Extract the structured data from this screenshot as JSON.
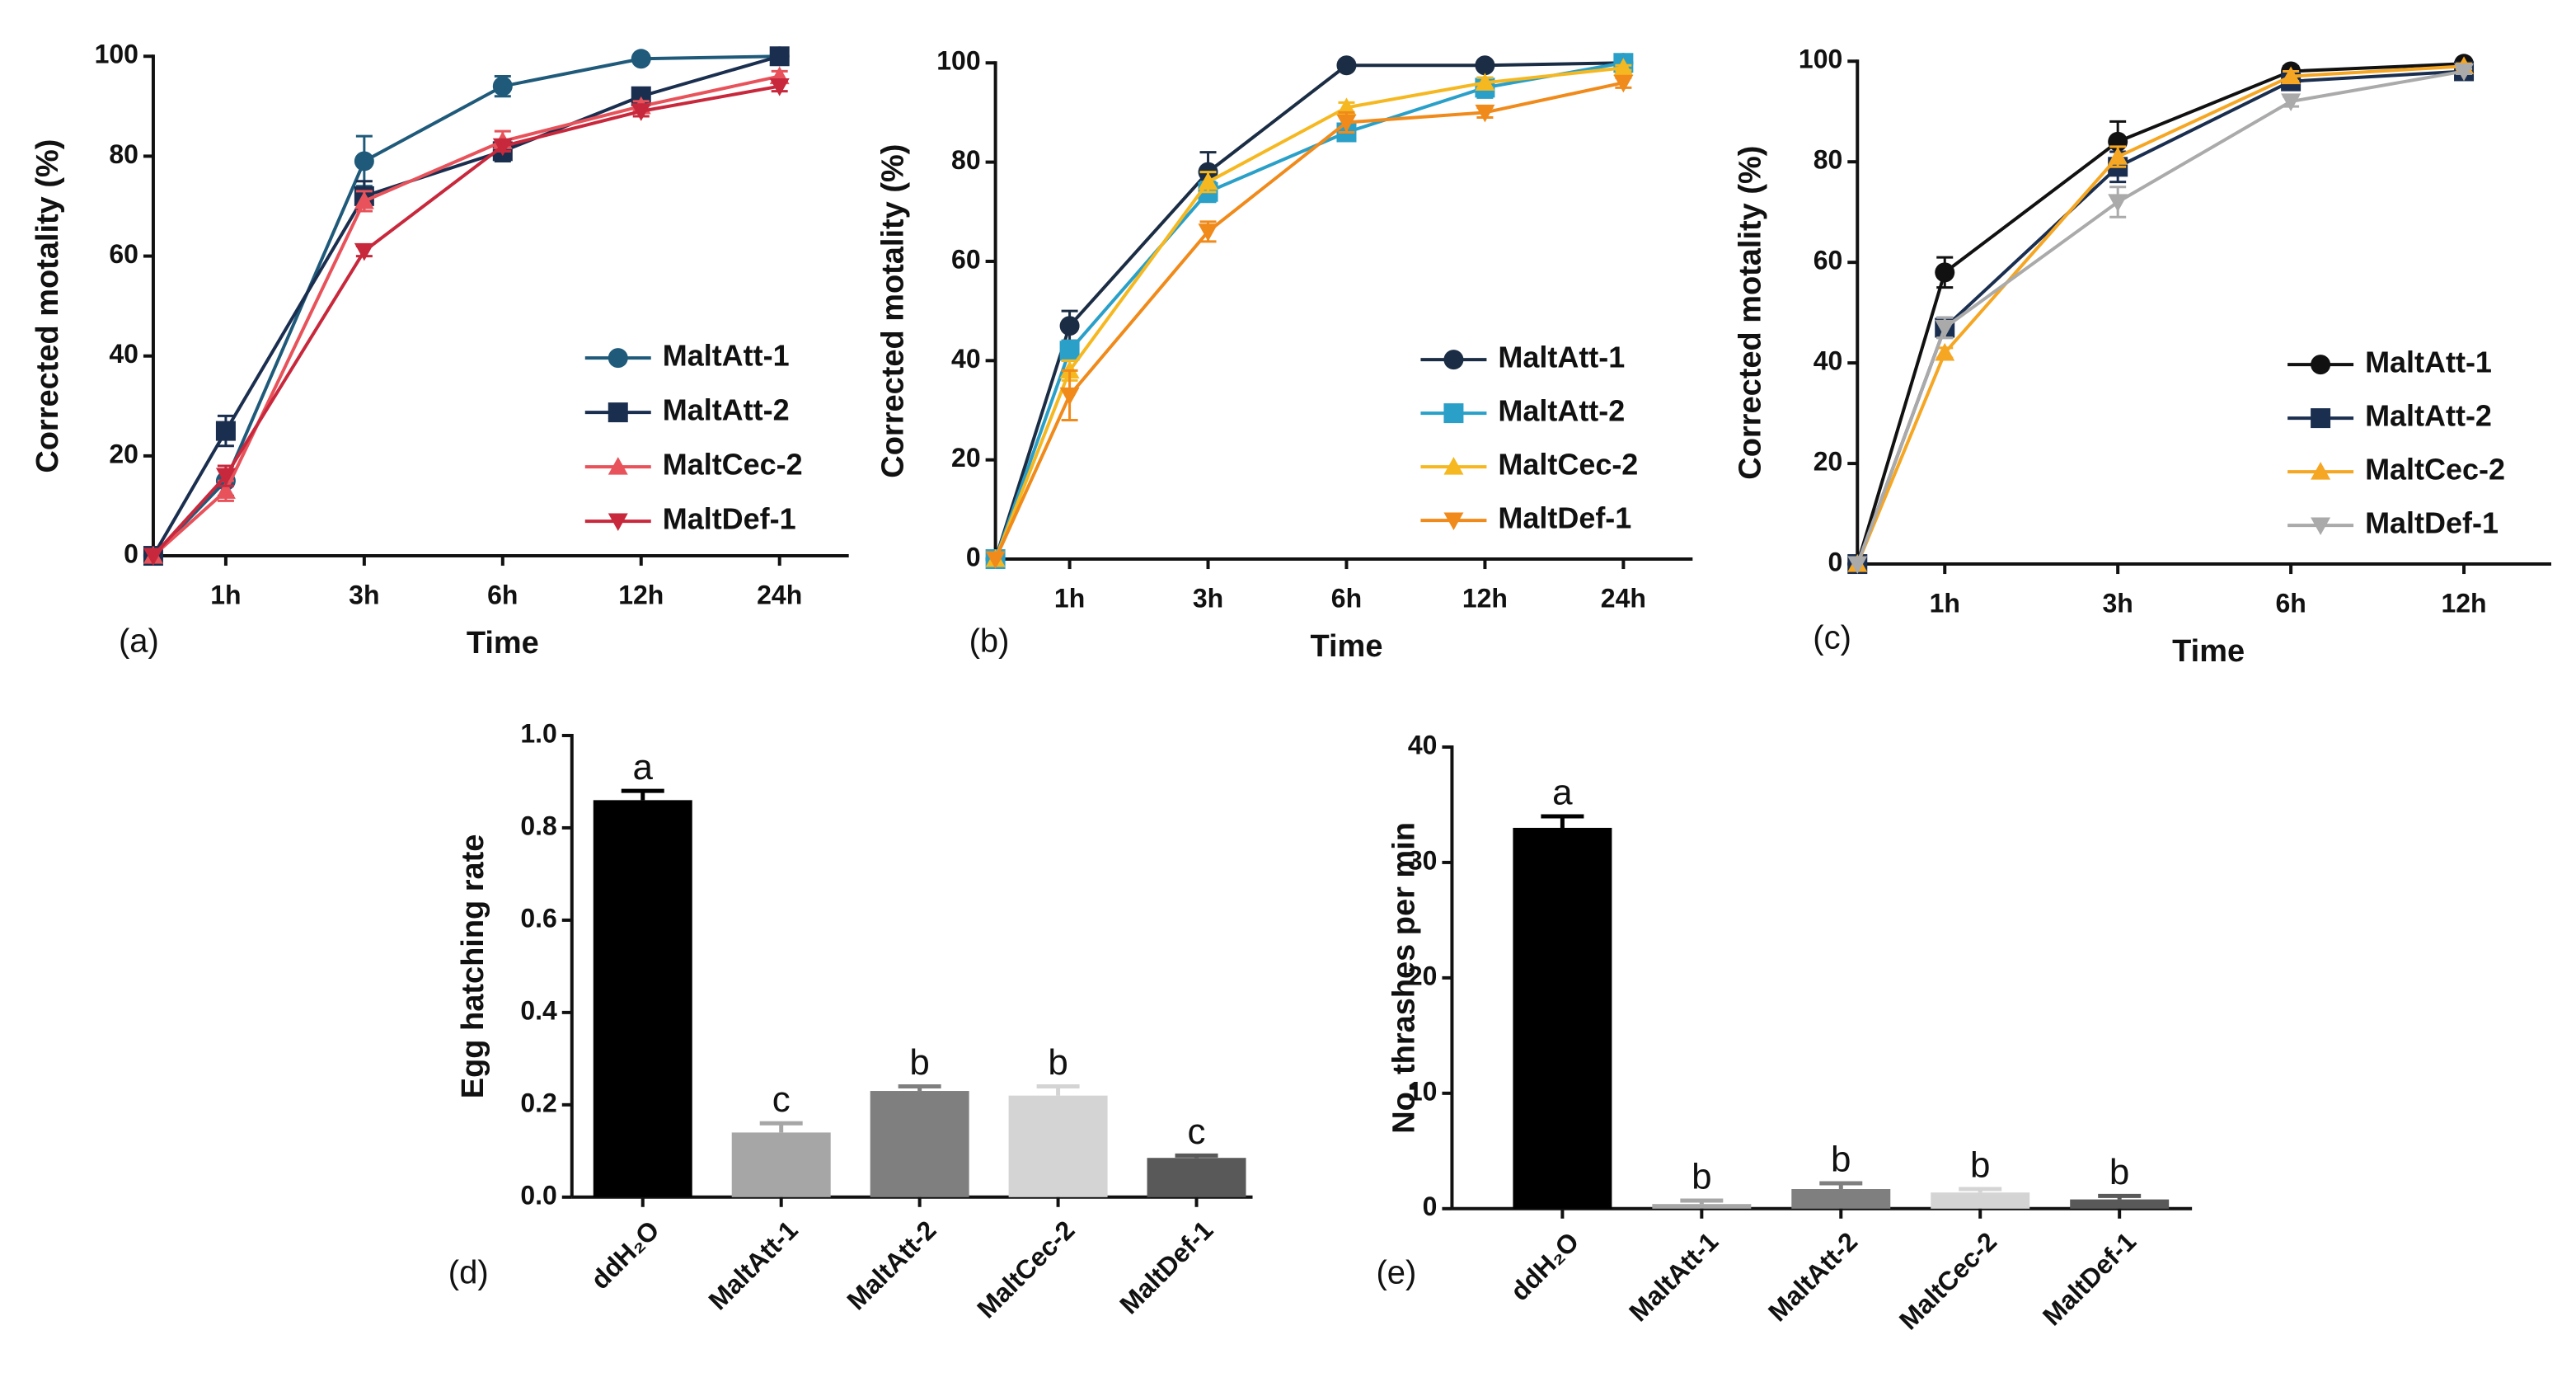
{
  "chart_data": [
    {
      "type": "line",
      "panel": "(a)",
      "xlabel": "Time",
      "ylabel": "Corrected motality (%)",
      "categories": [
        null,
        "1h",
        "3h",
        "6h",
        "12h",
        "24h"
      ],
      "ylim": [
        0,
        100
      ],
      "yticks": [
        0,
        20,
        40,
        60,
        80,
        100
      ],
      "series": [
        {
          "name": "MaltAtt-1",
          "color": "#1f5a7a",
          "marker": "circle",
          "values": [
            0,
            15,
            79,
            94,
            99.5,
            100
          ],
          "errors": [
            0,
            3,
            5,
            2,
            0.5,
            0.5
          ]
        },
        {
          "name": "MaltAtt-2",
          "color": "#1a2e4f",
          "marker": "square",
          "values": [
            0,
            25,
            72,
            81,
            92,
            100
          ],
          "errors": [
            0,
            3,
            3,
            2,
            1,
            0.5
          ]
        },
        {
          "name": "MaltCec-2",
          "color": "#e8525a",
          "marker": "triangle",
          "values": [
            0,
            13,
            71,
            83,
            90,
            96
          ],
          "errors": [
            0,
            2,
            2,
            2,
            1,
            1
          ]
        },
        {
          "name": "MaltDef-1",
          "color": "#c8283c",
          "marker": "triangle-down",
          "values": [
            0,
            16,
            61,
            82,
            89,
            94
          ],
          "errors": [
            0,
            2,
            1,
            1,
            1,
            1
          ]
        }
      ]
    },
    {
      "type": "line",
      "panel": "(b)",
      "xlabel": "Time",
      "ylabel": "Corrected motality (%)",
      "categories": [
        null,
        "1h",
        "3h",
        "6h",
        "12h",
        "24h"
      ],
      "ylim": [
        0,
        100
      ],
      "yticks": [
        0,
        20,
        40,
        60,
        80,
        100
      ],
      "series": [
        {
          "name": "MaltAtt-1",
          "color": "#1b2d44",
          "marker": "circle",
          "values": [
            0,
            47,
            78,
            99.5,
            99.5,
            100
          ],
          "errors": [
            0,
            3,
            4,
            0.5,
            0.5,
            0.5
          ]
        },
        {
          "name": "MaltAtt-2",
          "color": "#2aa0c8",
          "marker": "square",
          "values": [
            0,
            42,
            74,
            86,
            95,
            100
          ],
          "errors": [
            0,
            2,
            2,
            1,
            2,
            0.5
          ]
        },
        {
          "name": "MaltCec-2",
          "color": "#f5b820",
          "marker": "triangle",
          "values": [
            0,
            38,
            76,
            91,
            96,
            99
          ],
          "errors": [
            0,
            2,
            2,
            1,
            1,
            0.5
          ]
        },
        {
          "name": "MaltDef-1",
          "color": "#f08a1a",
          "marker": "triangle-down",
          "values": [
            0,
            33,
            66,
            88,
            90,
            96
          ],
          "errors": [
            0,
            5,
            2,
            2,
            1,
            1
          ]
        }
      ]
    },
    {
      "type": "line",
      "panel": "(c)",
      "xlabel": "Time",
      "ylabel": "Corrected motality (%)",
      "categories": [
        null,
        "1h",
        "3h",
        "6h",
        "12h"
      ],
      "ylim": [
        0,
        100
      ],
      "yticks": [
        0,
        20,
        40,
        60,
        80,
        100
      ],
      "series": [
        {
          "name": "MaltAtt-1",
          "color": "#111111",
          "marker": "circle",
          "values": [
            0,
            58,
            84,
            98,
            99.5
          ],
          "errors": [
            0,
            3,
            4,
            1,
            0.5
          ]
        },
        {
          "name": "MaltAtt-2",
          "color": "#1a2e4f",
          "marker": "square",
          "values": [
            0,
            47,
            79,
            96,
            98
          ],
          "errors": [
            0,
            2,
            3,
            1,
            0.5
          ]
        },
        {
          "name": "MaltCec-2",
          "color": "#f5a623",
          "marker": "triangle",
          "values": [
            0,
            42,
            81,
            97,
            99
          ],
          "errors": [
            0,
            1,
            2,
            1,
            0.5
          ]
        },
        {
          "name": "MaltDef-1",
          "color": "#aaaaaa",
          "marker": "triangle-down",
          "values": [
            0,
            47,
            72,
            92,
            98
          ],
          "errors": [
            0,
            2,
            3,
            1,
            0.5
          ]
        }
      ]
    },
    {
      "type": "bar",
      "panel": "(d)",
      "ylabel": "Egg hatching rate",
      "categories": [
        "ddH₂O",
        "MaltAtt-1",
        "MaltAtt-2",
        "MaltCec-2",
        "MaltDef-1"
      ],
      "values": [
        0.86,
        0.14,
        0.23,
        0.22,
        0.085
      ],
      "errors": [
        0.02,
        0.02,
        0.01,
        0.02,
        0.005
      ],
      "letters": [
        "a",
        "c",
        "b",
        "b",
        "c"
      ],
      "colors": [
        "#000000",
        "#a6a6a6",
        "#7f7f7f",
        "#d4d4d4",
        "#595959"
      ],
      "ylim": [
        0,
        1
      ],
      "yticks": [
        {
          "value": 0,
          "label": "0.0"
        },
        0.2,
        0.4,
        0.6,
        0.8,
        {
          "value": 1,
          "label": "1.0"
        }
      ]
    },
    {
      "type": "bar",
      "panel": "(e)",
      "ylabel": "No. thrashes per min",
      "categories": [
        "ddH₂O",
        "MaltAtt-1",
        "MaltAtt-2",
        "MaltCec-2",
        "MaltDef-1"
      ],
      "values": [
        33,
        0.4,
        1.7,
        1.4,
        0.8
      ],
      "errors": [
        1,
        0.3,
        0.5,
        0.3,
        0.3
      ],
      "letters": [
        "a",
        "b",
        "b",
        "b",
        "b"
      ],
      "colors": [
        "#000000",
        "#a6a6a6",
        "#7f7f7f",
        "#d4d4d4",
        "#595959"
      ],
      "ylim": [
        0,
        40
      ],
      "yticks": [
        0,
        10,
        20,
        30,
        40
      ]
    }
  ]
}
